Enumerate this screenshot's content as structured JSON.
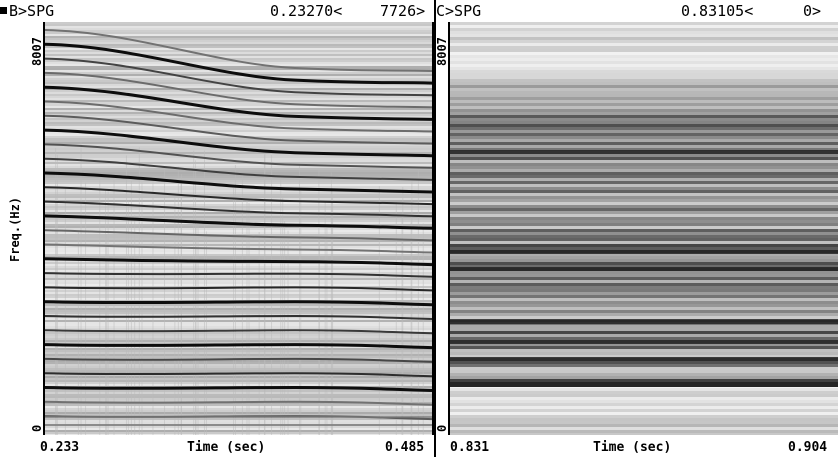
{
  "left_panel": {
    "marker_icon": "square-bullet-icon",
    "title": "B>SPG",
    "cursor_value": "0.23270<",
    "cursor_index": "7726>",
    "freq_max": "8007",
    "freq_min": "0",
    "y_axis_label": "Freq.(Hz)",
    "time_start": "0.233",
    "time_axis_label": "Time (sec)",
    "time_end": "0.485"
  },
  "right_panel": {
    "title": "C>SPG",
    "cursor_value": "0.83105<",
    "cursor_index": "0>",
    "freq_max": "8007",
    "freq_min": "0",
    "time_start": "0.831",
    "time_axis_label": "Time (sec)",
    "time_end": "0.904"
  }
}
